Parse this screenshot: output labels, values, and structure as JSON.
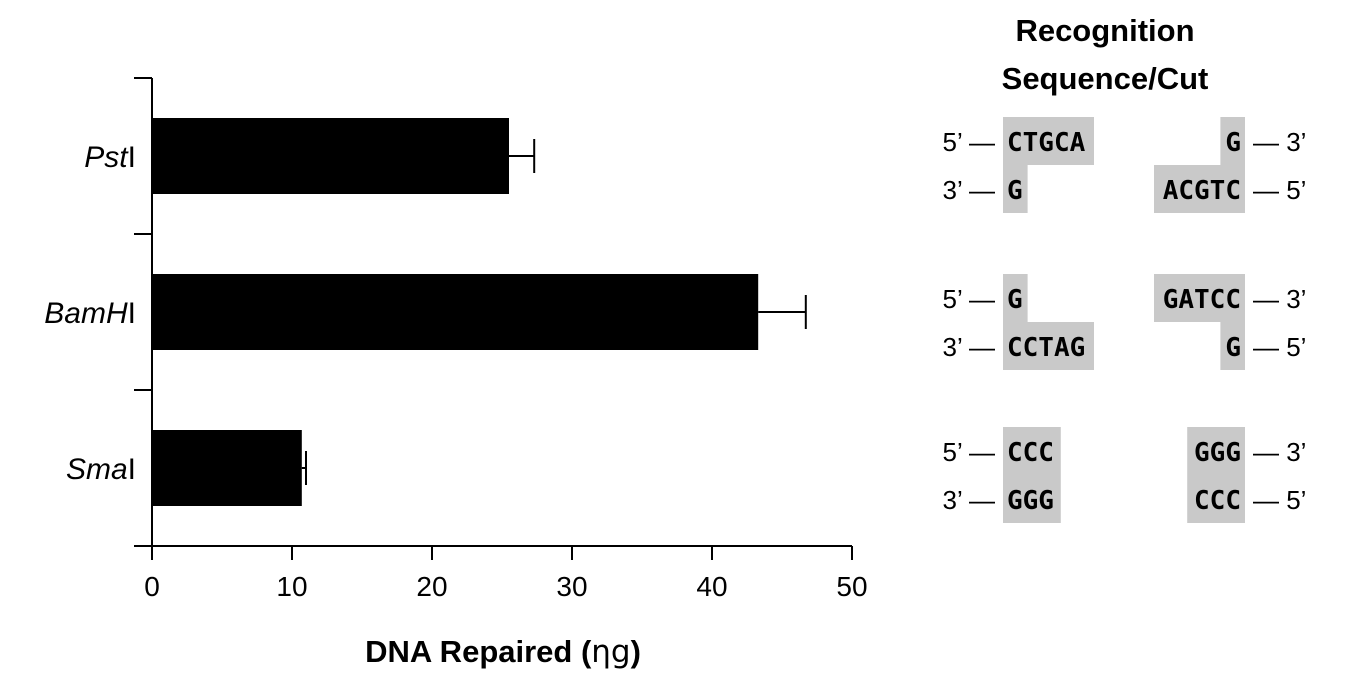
{
  "chart_data": {
    "type": "bar",
    "orientation": "horizontal",
    "categories": [
      {
        "italic": "Pst",
        "roman": "I"
      },
      {
        "italic": "BamH",
        "roman": "I"
      },
      {
        "italic": "Sma",
        "roman": "I"
      }
    ],
    "values": [
      25.5,
      43.3,
      10.7
    ],
    "errors": [
      1.8,
      3.4,
      0.3
    ],
    "xlabel": {
      "pre": "DNA Repaired (",
      "unit": "ηg",
      "post": ")"
    },
    "ylabel": "",
    "xlim": [
      0,
      50
    ],
    "xticks": [
      "0",
      "10",
      "20",
      "30",
      "40",
      "50"
    ],
    "bar_color": "#000000",
    "grid": false
  },
  "recognition": {
    "title_line1": "Recognition",
    "title_line2": "Sequence/Cut",
    "highlight_color": "#c9c9c9",
    "enzymes": [
      {
        "top": {
          "left_end": "5’ —",
          "left_seq": "CTGCA",
          "right_seq": "G",
          "right_end": "— 3’"
        },
        "bottom": {
          "left_end": "3’ —",
          "left_seq": "G",
          "right_seq": "ACGTC",
          "right_end": "— 5’"
        }
      },
      {
        "top": {
          "left_end": "5’ —",
          "left_seq": "G",
          "right_seq": "GATCC",
          "right_end": "— 3’"
        },
        "bottom": {
          "left_end": "3’ —",
          "left_seq": "CCTAG",
          "right_seq": "G",
          "right_end": "— 5’"
        }
      },
      {
        "top": {
          "left_end": "5’ —",
          "left_seq": "CCC",
          "right_seq": "GGG",
          "right_end": "— 3’"
        },
        "bottom": {
          "left_end": "3’ —",
          "left_seq": "GGG",
          "right_seq": "CCC",
          "right_end": "— 5’"
        }
      }
    ]
  }
}
